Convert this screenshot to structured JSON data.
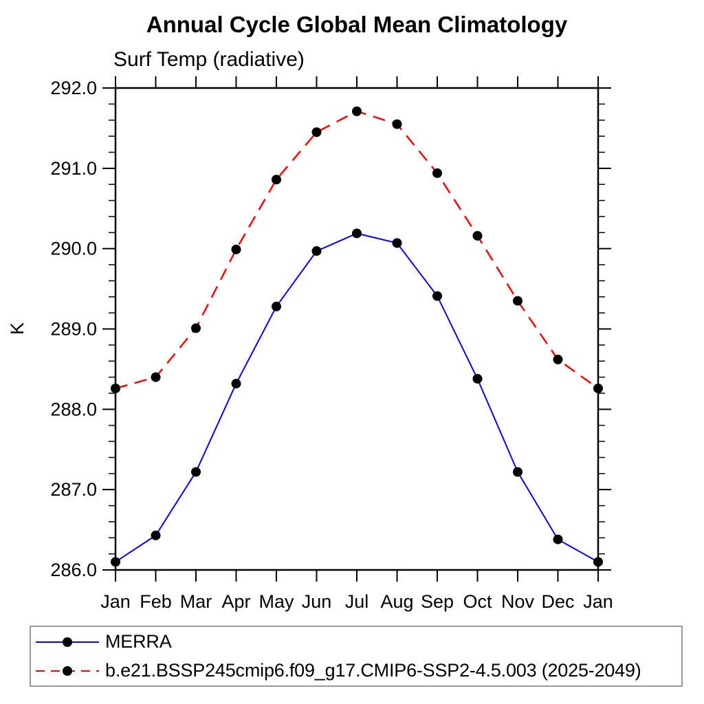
{
  "window": {
    "background": "#ffffff"
  },
  "chart_data": {
    "type": "line",
    "title": "Annual Cycle Global Mean Climatology",
    "subtitle": "Surf Temp (radiative)",
    "ylabel": "K",
    "xlabel": "",
    "x_tick_labels": [
      "Jan",
      "Feb",
      "Mar",
      "Apr",
      "May",
      "Jun",
      "Jul",
      "Aug",
      "Sep",
      "Oct",
      "Nov",
      "Dec",
      "Jan"
    ],
    "y_ticks": [
      286.0,
      287.0,
      288.0,
      289.0,
      290.0,
      291.0,
      292.0
    ],
    "y_tick_labels": [
      "286.0",
      "287.0",
      "288.0",
      "289.0",
      "290.0",
      "291.0",
      "292.0"
    ],
    "ylim": [
      286.0,
      292.0
    ],
    "y_minor_step": 0.2,
    "grid": "off",
    "legend_position": "bottom-left",
    "axis_color": "#000000",
    "marker_color": "#000000",
    "series": [
      {
        "name": "MERRA",
        "color": "#0000ff",
        "style": "solid",
        "marker": "filled-circle",
        "values": [
          286.1,
          286.43,
          287.22,
          288.32,
          289.28,
          289.97,
          290.19,
          290.07,
          289.41,
          288.38,
          287.22,
          286.38,
          286.1
        ]
      },
      {
        "name": "b.e21.BSSP245cmip6.f09_g17.CMIP6-SSP2-4.5.003 (2025-2049)",
        "color": "#ff0000",
        "style": "dashed",
        "marker": "filled-circle",
        "values": [
          288.26,
          288.4,
          289.01,
          289.99,
          290.86,
          291.45,
          291.71,
          291.55,
          290.94,
          290.16,
          289.35,
          288.62,
          288.26
        ]
      }
    ]
  },
  "layout_meta": {
    "legend_border_color": "#9a9a9a"
  }
}
